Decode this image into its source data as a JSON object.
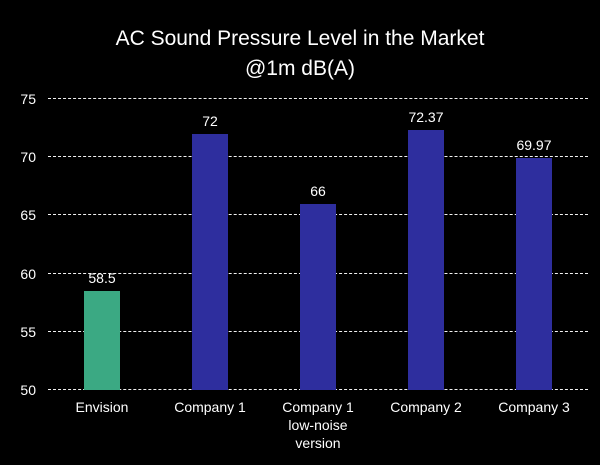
{
  "chart_data": {
    "type": "bar",
    "title": "AC Sound Pressure Level in the Market @1m dB(A)",
    "title_lines": [
      "AC Sound Pressure Level in the Market",
      "@1m dB(A)"
    ],
    "categories": [
      "Envision",
      "Company 1",
      "Company 1 low-noise version",
      "Company 2",
      "Company 3"
    ],
    "values": [
      58.5,
      72,
      66,
      72.37,
      69.97
    ],
    "value_labels": [
      "58.5",
      "72",
      "66",
      "72.37",
      "69.97"
    ],
    "bar_colors": [
      "#3BA983",
      "#2E2E9E",
      "#2E2E9E",
      "#2E2E9E",
      "#2E2E9E"
    ],
    "xlabel": "",
    "ylabel": "",
    "ylim": [
      50,
      75
    ],
    "yticks": [
      50,
      55,
      60,
      65,
      70,
      75
    ],
    "grid": "horizontal-dashed",
    "legend": "none",
    "background_color": "#000000",
    "text_color": "#FFFFFF"
  }
}
